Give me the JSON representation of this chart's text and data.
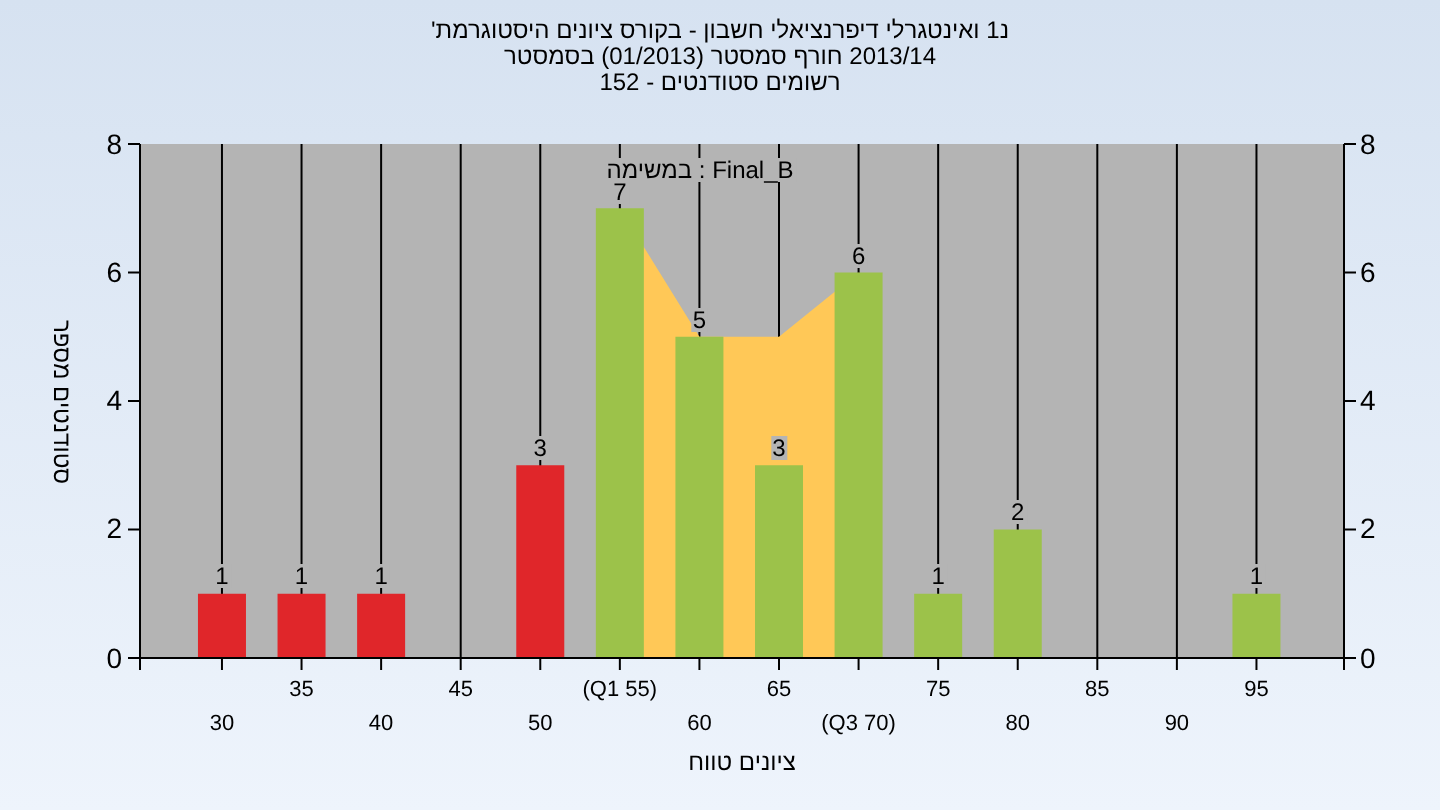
{
  "chart_data": {
    "type": "bar",
    "title": "'היסטוגרמת ציונים בקורס - חשבון דיפרנציאלי ואינטגרלי 1נ",
    "subtitle": "בסמסטר (01/2013) סמסטר חורף 2013/14",
    "annotations": [
      "152 - סטודנטים רשומים",
      "במשימה : Final_B"
    ],
    "xlabel": "טווח ציונים",
    "ylabel": "מספר סטודנטים",
    "categories": [
      "30",
      "35",
      "40",
      "45",
      "50",
      "(Q1 55)",
      "60",
      "65",
      "(Q3 70)",
      "75",
      "80",
      "85",
      "90",
      "95"
    ],
    "series": [
      {
        "type": "area",
        "color": "#ffc857",
        "values": [
          null,
          null,
          null,
          null,
          null,
          7,
          5,
          5,
          6,
          null,
          null,
          null,
          null,
          null
        ]
      },
      {
        "colors": [
          "#e0262a",
          "#e0262a",
          "#e0262a",
          "#e0262a",
          "#e0262a",
          "#9cc24a",
          "#9cc24a",
          "#9cc24a",
          "#9cc24a",
          "#9cc24a",
          "#9cc24a",
          "#9cc24a",
          "#9cc24a",
          "#9cc24a"
        ],
        "values": [
          1,
          1,
          1,
          0,
          3,
          7,
          5,
          3,
          6,
          1,
          2,
          0,
          0,
          1
        ],
        "value_labels": [
          "1",
          "1",
          "1",
          null,
          "3",
          "7",
          "5",
          "3",
          "6",
          "1",
          "2",
          null,
          null,
          "1"
        ]
      }
    ],
    "ylim": [
      0,
      8
    ],
    "yticks": [
      0,
      2,
      4,
      6,
      8
    ],
    "y2lim": [
      0,
      8
    ],
    "y2ticks": [
      0,
      2,
      4,
      6,
      8
    ],
    "grid": "x"
  }
}
